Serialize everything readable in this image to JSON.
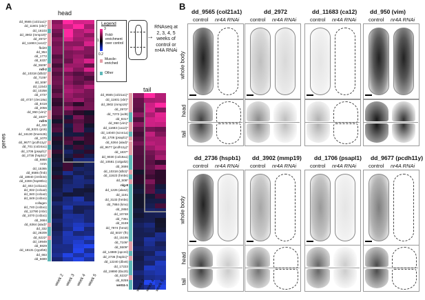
{
  "panel_a": {
    "letter": "A",
    "head_label": "head",
    "tail_label": "tail",
    "genes_axis": "genes",
    "columns": [
      "week 2",
      "week 3",
      "week 4",
      "week 5"
    ],
    "legend": {
      "title": "Legend",
      "scale_top": "3",
      "scale_mid": "1",
      "scale_bot": "0.2",
      "scale_caption": "Fold-enrichment over control",
      "muscle": "Muscle-enriched",
      "other": "Other"
    },
    "schematic_text": "RNAseq at 2, 3, 4, 5 weeks of control or nr4A RNAi",
    "head_genes": [
      "dd_9565 (col21a1)*",
      "dd_11601 (xbr)*",
      "dd_16103",
      "dd_3902 (mmp19)*",
      "dd_2972*",
      "dd_11683 (ca12)*",
      "fbd20",
      "dd_954",
      "dd_1772",
      "dd_6337",
      "dd_5509*",
      "ndl-2",
      "dd_10318 (tdb3)*",
      "dd_7106*",
      "dd_508*",
      "dd_11543",
      "dd_10258",
      "dd_4737",
      "dd_4737 (clec18a)",
      "dd_8418",
      "dd_2056",
      "dd_950 (vim)*",
      "dd_1837*",
      "ndl-5",
      "dd_432",
      "dd_5321 (p16)",
      "dd_16130 (tmem26)",
      "dd_1070",
      "dd_9677 (pcdh11y)*",
      "dd_701 (col24a1)",
      "dd_1706 (psapl1)*",
      "dd_2736 (hspb1)*",
      "dd_6860",
      "nr4A",
      "dd_15365",
      "dd_6585 (fmb)",
      "dd_18940 (zmf234)",
      "dd_2269 (hsp90b1)",
      "dd_402 (col11a1)",
      "dd_832 (col1a2)",
      "dd_840 (col1a2)",
      "dd_649 (col2a1)",
      "collagen",
      "dd_740 (col2a1)",
      "dd_12790 (rnbr)",
      "dd_1070 (col2a1)",
      "dd_3684",
      "dd_6364 (alad)*",
      "dd_332",
      "dd_28209",
      "dd_6222*",
      "dd_19949",
      "dd_8829",
      "dd_18131 (cyp2b6)",
      "dd_663",
      "dd_5690"
    ],
    "tail_genes": [
      "dd_9565 (col21a1)*",
      "dd_11601 (xbr)*",
      "dd_3902 (mmp19)*",
      "dd_2972*",
      "dd_7272 (acl8)",
      "dd_8317",
      "dd_950 (vim)*",
      "dd_11683 (ca12)*",
      "dd_14040 (scnn1a)",
      "dd_1706 (psapl1)*",
      "dd_6364 (alad)*",
      "dd_9677 (pcdh11y)*",
      "dd_1837*",
      "dd_9030 (col19a1)",
      "dd_10581 (colgalt2)",
      "dd_3686",
      "dd_10318 (tdb3)*",
      "dd_11623 (hmbs)",
      "dd_508*",
      "nlg-8",
      "dd_1226 (alas2)",
      "dd_1161",
      "dd_3133 (hmbs)",
      "dd_7884 (kmo)",
      "dd_2850",
      "dd_10748",
      "dd_7351",
      "dd_3169",
      "dd_7974 (hmt2)",
      "dd_5037 (fh)",
      "dd_15195",
      "dd_7106*",
      "dd_5509*",
      "dd_14989 (opcml)",
      "dd_2736 (hspb1)*",
      "dd_12240 (dbx6)",
      "dd_17223",
      "dd_19890 (tbx20)",
      "dd_6222*",
      "dd_9259",
      "wnt11-1"
    ]
  },
  "panel_b": {
    "letter": "B",
    "top_titles": [
      "dd_9565 (col21a1)",
      "dd_2972",
      "dd_11683 (ca12)",
      "dd_950 (vim)"
    ],
    "bottom_titles": [
      "dd_2736 (hspb1)",
      "dd_3902 (mmp19)",
      "dd_1706 (psapl1)",
      "dd_9677 (pcdh11y)"
    ],
    "control": "control",
    "rnai": "nr4A RNAi",
    "row_whole": "whole body",
    "row_head": "head",
    "row_tail": "tail"
  },
  "colors": {
    "muscle": "#e2a0a8",
    "other": "#5fb8b8",
    "high": "#ff2a9c",
    "low": "#2040c0"
  }
}
